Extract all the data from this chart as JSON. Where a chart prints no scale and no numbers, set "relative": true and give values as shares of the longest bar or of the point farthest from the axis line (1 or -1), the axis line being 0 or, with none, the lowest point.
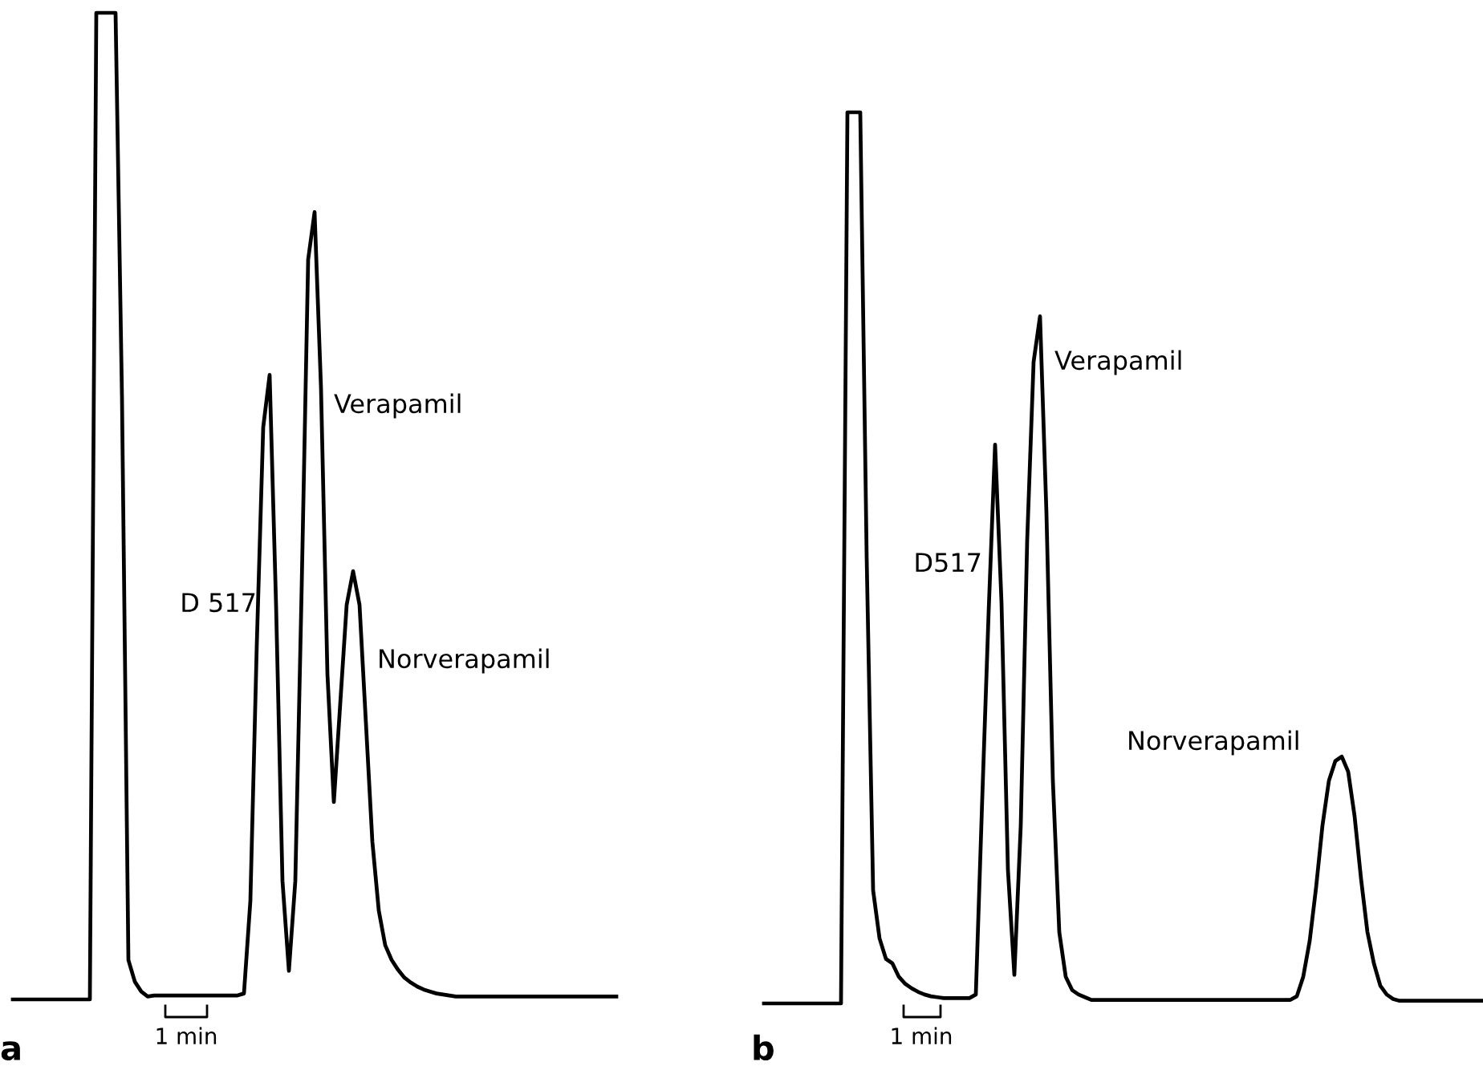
{
  "chart_data": [
    {
      "type": "line",
      "title": "a",
      "relative": true,
      "marker": "none",
      "line_style": "solid",
      "categories": [
        null,
        null,
        null,
        null,
        null,
        null,
        null,
        null,
        null,
        null,
        null,
        null,
        null,
        null,
        null,
        null,
        null,
        null,
        null,
        null,
        null,
        null,
        null,
        null,
        null,
        null,
        null,
        null,
        null,
        null,
        null,
        null,
        null,
        null,
        null,
        null,
        null,
        null,
        null,
        null,
        null,
        null,
        null,
        null,
        null,
        null,
        null,
        null,
        null,
        null,
        null,
        null,
        null,
        null,
        null,
        null,
        null,
        null,
        null,
        null,
        null,
        null,
        null,
        null,
        null,
        null,
        null,
        null,
        null,
        null,
        null,
        null,
        null,
        null,
        null,
        null,
        null,
        null,
        null,
        null,
        null,
        null,
        null,
        null,
        null,
        null,
        null,
        null,
        null,
        null,
        null,
        null,
        null,
        null,
        null
      ],
      "series": [
        {
          "color": "#000000",
          "values": [
            0,
            0,
            0,
            0,
            0,
            0,
            0,
            0,
            0,
            0,
            0,
            0,
            0,
            1,
            1,
            1,
            1,
            0.61,
            0.04,
            0.018,
            0.008,
            0.003,
            0.004,
            0.004,
            0.004,
            0.004,
            0.004,
            0.004,
            0.004,
            0.004,
            0.004,
            0.004,
            0.004,
            0.004,
            0.004,
            0.004,
            0.006,
            0.1,
            0.36,
            0.58,
            0.633,
            0.4,
            0.12,
            0.029,
            0.12,
            0.42,
            0.75,
            0.798,
            0.62,
            0.33,
            0.2,
            0.3,
            0.4,
            0.434,
            0.4,
            0.28,
            0.16,
            0.09,
            0.055,
            0.04,
            0.03,
            0.022,
            0.017,
            0.013,
            0.01,
            0.008,
            0.006,
            0.005,
            0.004,
            0.003,
            0.003,
            0.003,
            0.003,
            0.003,
            0.003,
            0.003,
            0.003,
            0.003,
            0.003,
            0.003,
            0.003,
            0.003,
            0.003,
            0.003,
            0.003,
            0.003,
            0.003,
            0.003,
            0.003,
            0.003,
            0.003,
            0.003,
            0.003,
            0.003,
            0.003
          ]
        }
      ],
      "annotations": [
        "D 517",
        "Verapamil",
        "Norverapamil",
        "1 min"
      ]
    },
    {
      "type": "line",
      "title": "b",
      "relative": true,
      "marker": "none",
      "line_style": "solid",
      "categories": [
        null,
        null,
        null,
        null,
        null,
        null,
        null,
        null,
        null,
        null,
        null,
        null,
        null,
        null,
        null,
        null,
        null,
        null,
        null,
        null,
        null,
        null,
        null,
        null,
        null,
        null,
        null,
        null,
        null,
        null,
        null,
        null,
        null,
        null,
        null,
        null,
        null,
        null,
        null,
        null,
        null,
        null,
        null,
        null,
        null,
        null,
        null,
        null,
        null,
        null,
        null,
        null,
        null,
        null,
        null,
        null,
        null,
        null,
        null,
        null,
        null,
        null,
        null,
        null,
        null,
        null,
        null,
        null,
        null,
        null,
        null,
        null,
        null,
        null,
        null,
        null,
        null,
        null,
        null,
        null,
        null,
        null,
        null,
        null,
        null,
        null,
        null,
        null,
        null,
        null,
        null,
        null,
        null,
        null,
        null,
        null,
        null,
        null,
        null,
        null,
        null,
        null,
        null,
        null,
        null,
        null,
        null,
        null,
        null,
        null,
        null,
        null,
        null
      ],
      "series": [
        {
          "color": "#000000",
          "values": [
            0,
            0,
            0,
            0,
            0,
            0,
            0,
            0,
            0,
            0,
            0,
            0,
            0,
            1,
            1,
            1,
            0.5,
            0.127,
            0.073,
            0.05,
            0.045,
            0.03,
            0.022,
            0.017,
            0.013,
            0.01,
            0.008,
            0.007,
            0.006,
            0.006,
            0.006,
            0.006,
            0.006,
            0.01,
            0.23,
            0.44,
            0.627,
            0.45,
            0.15,
            0.032,
            0.2,
            0.52,
            0.72,
            0.771,
            0.55,
            0.25,
            0.08,
            0.03,
            0.015,
            0.01,
            0.007,
            0.004,
            0.004,
            0.004,
            0.004,
            0.004,
            0.004,
            0.004,
            0.004,
            0.004,
            0.004,
            0.004,
            0.004,
            0.004,
            0.004,
            0.004,
            0.004,
            0.004,
            0.004,
            0.004,
            0.004,
            0.004,
            0.004,
            0.004,
            0.004,
            0.004,
            0.004,
            0.004,
            0.004,
            0.004,
            0.004,
            0.004,
            0.004,
            0.008,
            0.03,
            0.07,
            0.13,
            0.2,
            0.25,
            0.272,
            0.277,
            0.26,
            0.21,
            0.14,
            0.08,
            0.045,
            0.02,
            0.01,
            0.005,
            0.003,
            0.003,
            0.003,
            0.003,
            0.003,
            0.003,
            0.003,
            0.003,
            0.003,
            0.003,
            0.003,
            0.003,
            0.003,
            0.003
          ]
        }
      ],
      "annotations": [
        "D517",
        "Verapamil",
        "Norverapamil",
        "1 min"
      ]
    }
  ]
}
